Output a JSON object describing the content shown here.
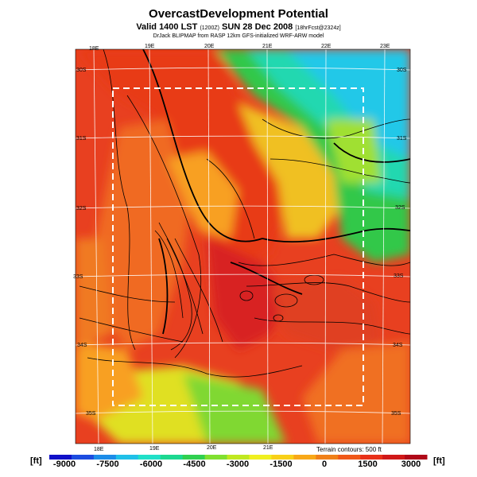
{
  "header": {
    "title": "OvercastDevelopment Potential",
    "valid_main": "Valid 1400 LST",
    "valid_utc": "(1200Z)",
    "valid_date": "SUN 28 Dec 2008",
    "valid_hours": "[18hrFcst@2324z]",
    "credit": "DrJack BLIPMAP from RASP 12km GFS-initialized WRF-ARW model"
  },
  "lon_labels_top": [
    "18E",
    "19E",
    "20E",
    "21E",
    "22E",
    "23E"
  ],
  "lon_labels_bottom": [
    "18E",
    "19E",
    "20E",
    "21E"
  ],
  "lat_labels_left": [
    "30S",
    "31S",
    "32S",
    "33S",
    "34S",
    "35S"
  ],
  "lat_labels_right": [
    "30S",
    "31S",
    "32S",
    "33S",
    "34S",
    "35S"
  ],
  "terrain_note": "Terrain contours: 500 ft",
  "colorbar": {
    "unit_left": "[ft]",
    "unit_right": "[ft]",
    "tick_labels": [
      "-9000",
      "-7500",
      "-6000",
      "-4500",
      "-3000",
      "-1500",
      "0",
      "1500",
      "3000"
    ],
    "colors": [
      "#1010c8",
      "#1c4ce0",
      "#1c8ce8",
      "#20c0e8",
      "#20e0c8",
      "#1cd890",
      "#30d050",
      "#80e030",
      "#c0e820",
      "#f0f020",
      "#f8d018",
      "#f8a818",
      "#f08018",
      "#f05818",
      "#e83018",
      "#d01818",
      "#b00818"
    ]
  },
  "map_colors": {
    "deep_red": "#d82020",
    "red": "#e84020",
    "orange": "#f07020",
    "amber": "#f8a020",
    "yellow": "#f0e020",
    "lime": "#a0e030",
    "green": "#30c838",
    "teal": "#20d8b0",
    "cyan": "#20c8e8",
    "blue": "#2080e8"
  }
}
